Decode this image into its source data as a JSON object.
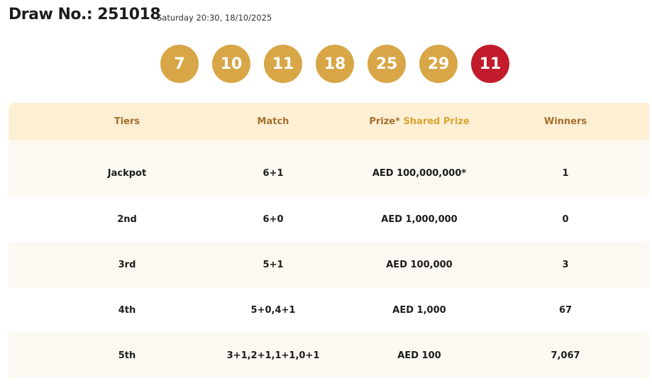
{
  "draw": {
    "title": "Draw No.: 251018",
    "datetime": "Saturday 20:30, 18/10/2025"
  },
  "balls": [
    "7",
    "10",
    "11",
    "18",
    "25",
    "29"
  ],
  "bonus_ball": "11",
  "colors": {
    "ball": "#d8a647",
    "bonus": "#c11b2c",
    "header_bg": "#fdefd4",
    "header_text": "#a5702d"
  },
  "table": {
    "headers": {
      "tiers": "Tiers",
      "match": "Match",
      "prize": "Prize*",
      "shared": "Shared Prize",
      "winners": "Winners"
    },
    "rows": [
      {
        "tier": "Jackpot",
        "match": "6+1",
        "prize": "AED 100,000,000*",
        "winners": "1"
      },
      {
        "tier": "2nd",
        "match": "6+0",
        "prize": "AED 1,000,000",
        "winners": "0"
      },
      {
        "tier": "3rd",
        "match": "5+1",
        "prize": "AED 100,000",
        "winners": "3"
      },
      {
        "tier": "4th",
        "match": "5+0,4+1",
        "prize": "AED 1,000",
        "winners": "67"
      },
      {
        "tier": "5th",
        "match": "3+1,2+1,1+1,0+1",
        "prize": "AED 100",
        "winners": "7,067"
      }
    ]
  }
}
